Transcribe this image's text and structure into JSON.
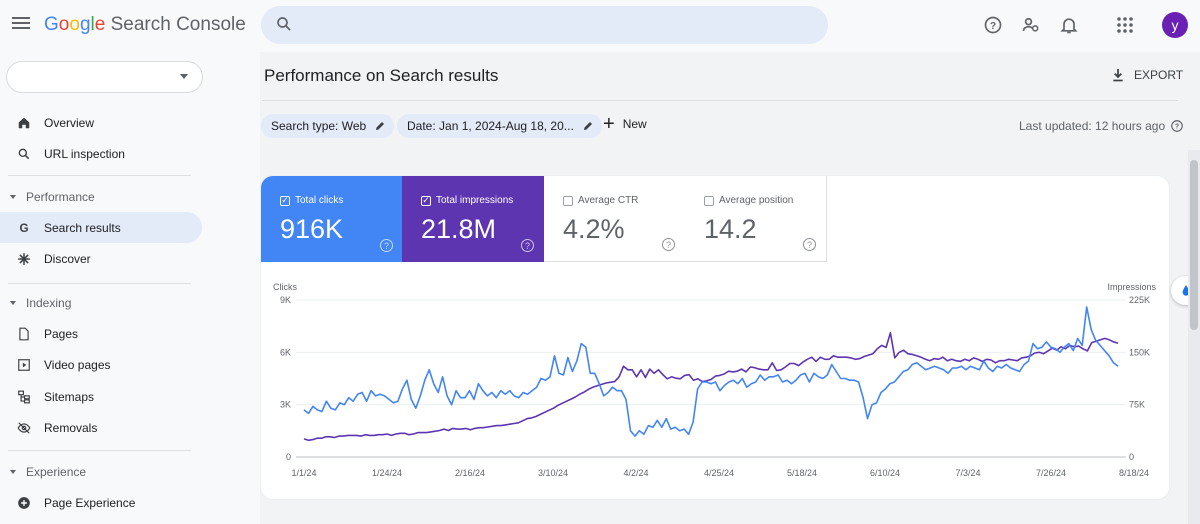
{
  "app": {
    "logo_google": [
      "G",
      "o",
      "o",
      "g",
      "l",
      "e"
    ],
    "logo_product": "Search Console",
    "search_placeholder": "",
    "avatar_letter": "y",
    "property_value": ""
  },
  "sidebar": {
    "items": [
      {
        "label": "Overview",
        "icon": "home-icon"
      },
      {
        "label": "URL inspection",
        "icon": "search-icon"
      },
      {
        "label": "Search results",
        "icon": "google-g-icon"
      },
      {
        "label": "Discover",
        "icon": "asterisk-icon"
      },
      {
        "label": "Pages",
        "icon": "pages-icon"
      },
      {
        "label": "Video pages",
        "icon": "video-pages-icon"
      },
      {
        "label": "Sitemaps",
        "icon": "sitemap-icon"
      },
      {
        "label": "Removals",
        "icon": "eye-off-icon"
      },
      {
        "label": "Page Experience",
        "icon": "plus-circle-icon"
      }
    ],
    "sections": [
      "Performance",
      "Indexing",
      "Experience"
    ]
  },
  "main": {
    "title": "Performance on Search results",
    "export_label": "EXPORT",
    "filters": {
      "search_type": "Search type: Web",
      "date": "Date: Jan 1, 2024-Aug 18, 20...",
      "new_label": "New"
    },
    "last_updated": "Last updated: 12 hours ago"
  },
  "metrics": [
    {
      "label": "Total clicks",
      "value": "916K",
      "checked": true
    },
    {
      "label": "Total impressions",
      "value": "21.8M",
      "checked": true
    },
    {
      "label": "Average CTR",
      "value": "4.2%",
      "checked": false
    },
    {
      "label": "Average position",
      "value": "14.2",
      "checked": false
    }
  ],
  "colors": {
    "clicks": "#4285f4",
    "impressions": "#5e35b1",
    "accent": "#1a73e8"
  },
  "chart_data": {
    "type": "line",
    "ylabel_left": "Clicks",
    "ylabel_right": "Impressions",
    "y_left_ticks": [
      "0",
      "3K",
      "6K",
      "9K"
    ],
    "y_right_ticks": [
      "0",
      "75K",
      "150K",
      "225K"
    ],
    "ylim_left": [
      0,
      9000
    ],
    "ylim_right": [
      0,
      225000
    ],
    "x_ticks": [
      "1/1/24",
      "1/24/24",
      "2/16/24",
      "3/10/24",
      "4/2/24",
      "4/25/24",
      "5/18/24",
      "6/10/24",
      "7/3/24",
      "7/26/24",
      "8/18/24"
    ],
    "grid": true,
    "series": [
      {
        "name": "Clicks",
        "axis": "left",
        "values": [
          2700,
          2500,
          2900,
          2700,
          2600,
          3200,
          2800,
          2700,
          3100,
          3000,
          3400,
          3200,
          3600,
          3700,
          3200,
          3800,
          3500,
          3600,
          3500,
          3300,
          3100,
          3200,
          3900,
          4400,
          3300,
          2800,
          3500,
          4400,
          5000,
          4200,
          3700,
          4600,
          3500,
          3000,
          3800,
          3400,
          3400,
          3800,
          3300,
          4200,
          3800,
          3500,
          3700,
          3400,
          3800,
          3600,
          3800,
          3500,
          3400,
          3700,
          3600,
          3800,
          4000,
          4500,
          4400,
          4600,
          5800,
          4800,
          4700,
          5700,
          4900,
          5500,
          6500,
          6300,
          4800,
          4800,
          4200,
          3500,
          3700,
          4000,
          3800,
          3800,
          3300,
          1500,
          1200,
          1500,
          1300,
          1800,
          1700,
          2100,
          1700,
          2200,
          1600,
          1700,
          1500,
          1600,
          1300,
          2000,
          3900,
          4300,
          4300,
          4200,
          4300,
          3800,
          4100,
          4300,
          4400,
          4200,
          4500,
          4000,
          4200,
          4300,
          4700,
          4400,
          4600,
          4600,
          4700,
          4300,
          4400,
          4200,
          4400,
          4700,
          4800,
          4300,
          4800,
          4600,
          4500,
          4700,
          5300,
          4900,
          4500,
          4500,
          4400,
          4400,
          4300,
          3400,
          2200,
          3000,
          3100,
          3700,
          3900,
          4200,
          4300,
          4600,
          4900,
          5000,
          5300,
          5400,
          5200,
          5000,
          5100,
          5200,
          5100,
          5000,
          4800,
          5100,
          5100,
          5200,
          5000,
          5200,
          5100,
          5000,
          5500,
          5100,
          4900,
          5200,
          5100,
          5300,
          5100,
          5000,
          4900,
          5300,
          5500,
          6500,
          6200,
          6300,
          6600,
          6300,
          6200,
          6000,
          6300,
          6500,
          6100,
          6800,
          6400,
          8600,
          7300,
          6700,
          6400,
          6100,
          5800,
          5400,
          5200
        ]
      },
      {
        "name": "Impressions",
        "axis": "right",
        "values": [
          26000,
          24000,
          25000,
          27000,
          27000,
          29000,
          29000,
          28000,
          30000,
          30000,
          31000,
          31000,
          31000,
          30000,
          32000,
          31000,
          31000,
          32000,
          32000,
          33000,
          31000,
          33000,
          34000,
          34000,
          32000,
          33000,
          35000,
          35000,
          35000,
          36000,
          37000,
          38000,
          40000,
          38000,
          41000,
          40000,
          40000,
          41000,
          39000,
          41000,
          42000,
          42000,
          43000,
          44000,
          45000,
          45000,
          46000,
          47000,
          48000,
          49000,
          52000,
          55000,
          56000,
          58000,
          61000,
          64000,
          67000,
          70000,
          74000,
          77000,
          80000,
          83000,
          86000,
          90000,
          93000,
          97000,
          100000,
          102000,
          104000,
          106000,
          107000,
          108000,
          115000,
          130000,
          125000,
          125000,
          115000,
          125000,
          114000,
          126000,
          120000,
          125000,
          118000,
          112000,
          115000,
          113000,
          112000,
          117000,
          118000,
          110000,
          112000,
          108000,
          109000,
          111000,
          116000,
          117000,
          119000,
          123000,
          122000,
          123000,
          126000,
          122000,
          129000,
          128000,
          126000,
          125000,
          125000,
          135000,
          124000,
          125000,
          129000,
          134000,
          134000,
          131000,
          136000,
          140000,
          143000,
          137000,
          143000,
          140000,
          140000,
          145000,
          143000,
          143000,
          143000,
          142000,
          140000,
          141000,
          144000,
          146000,
          148000,
          155000,
          160000,
          157000,
          178000,
          142000,
          150000,
          153000,
          148000,
          147000,
          145000,
          143000,
          140000,
          138000,
          141000,
          140000,
          143000,
          138000,
          140000,
          138000,
          137000,
          140000,
          138000,
          142000,
          140000,
          137000,
          140000,
          139000,
          135000,
          138000,
          138000,
          140000,
          139000,
          138000,
          142000,
          143000,
          145000,
          149000,
          150000,
          148000,
          152000,
          156000,
          153000,
          158000,
          155000,
          160000,
          158000,
          159000,
          155000,
          152000,
          164000,
          166000,
          168000,
          170000,
          168000,
          165000,
          163000
        ]
      }
    ]
  }
}
